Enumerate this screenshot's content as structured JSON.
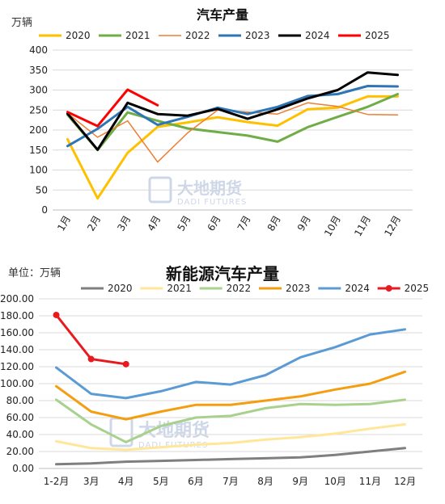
{
  "chart_data": [
    {
      "type": "line",
      "title": "汽车产量",
      "unit_label": "万辆",
      "categories": [
        "1月",
        "2月",
        "3月",
        "4月",
        "5月",
        "6月",
        "7月",
        "8月",
        "9月",
        "10月",
        "11月",
        "12月"
      ],
      "ylim": [
        0,
        400
      ],
      "yticks": [
        "0",
        "50",
        "100",
        "150",
        "200",
        "250",
        "300",
        "350",
        "400"
      ],
      "grid": true,
      "legend_position": "top",
      "series": [
        {
          "name": "2020",
          "color": "#FFC000",
          "width": 3,
          "marker": false,
          "values": [
            177,
            29,
            143,
            208,
            219,
            232,
            220,
            211,
            252,
            256,
            284,
            284
          ]
        },
        {
          "name": "2021",
          "color": "#70AD47",
          "width": 3,
          "marker": false,
          "values": [
            238,
            150,
            244,
            223,
            204,
            195,
            186,
            171,
            207,
            233,
            258,
            290
          ]
        },
        {
          "name": "2022",
          "color": "#ED7D31",
          "width": 1.5,
          "marker": false,
          "values": [
            242,
            182,
            223,
            120,
            193,
            250,
            245,
            240,
            268,
            259,
            239,
            238
          ]
        },
        {
          "name": "2023",
          "color": "#2E75B6",
          "width": 3,
          "marker": false,
          "values": [
            160,
            203,
            258,
            213,
            233,
            256,
            240,
            258,
            285,
            290,
            310,
            309
          ]
        },
        {
          "name": "2024",
          "color": "#000000",
          "width": 3,
          "marker": false,
          "values": [
            241,
            151,
            268,
            240,
            236,
            253,
            228,
            252,
            279,
            300,
            344,
            338
          ]
        },
        {
          "name": "2025",
          "color": "#FF0000",
          "width": 3,
          "marker": false,
          "values": [
            245,
            210,
            301,
            262,
            null,
            null,
            null,
            null,
            null,
            null,
            null,
            null
          ]
        }
      ]
    },
    {
      "type": "line",
      "title": "新能源汽车产量",
      "unit_label": "单位：万辆",
      "categories": [
        "1-2月",
        "3月",
        "4月",
        "5月",
        "6月",
        "7月",
        "8月",
        "9月",
        "10月",
        "11月",
        "12月"
      ],
      "ylim": [
        0,
        200
      ],
      "yticks": [
        "0.00",
        "20.00",
        "40.00",
        "60.00",
        "80.00",
        "100.00",
        "120.00",
        "140.00",
        "160.00",
        "180.00",
        "200.00"
      ],
      "grid": true,
      "legend_position": "top",
      "series": [
        {
          "name": "2020",
          "color": "#7F7F7F",
          "width": 3,
          "marker": false,
          "values": [
            5,
            6,
            8,
            9,
            10,
            11,
            12,
            13,
            16,
            20,
            24
          ]
        },
        {
          "name": "2021",
          "color": "#FFE699",
          "width": 3,
          "marker": false,
          "values": [
            32,
            24,
            22,
            25,
            28,
            30,
            34,
            37,
            41,
            47,
            52
          ]
        },
        {
          "name": "2022",
          "color": "#A9D18E",
          "width": 3,
          "marker": false,
          "values": [
            81,
            52,
            31,
            50,
            60,
            62,
            71,
            76,
            75,
            76,
            81
          ]
        },
        {
          "name": "2023",
          "color": "#F59D10",
          "width": 3,
          "marker": false,
          "values": [
            97,
            67,
            58,
            67,
            75,
            75,
            80,
            85,
            93,
            100,
            114
          ]
        },
        {
          "name": "2024",
          "color": "#5B9BD5",
          "width": 3,
          "marker": false,
          "values": [
            119,
            88,
            83,
            91,
            102,
            99,
            110,
            131,
            143,
            158,
            164
          ]
        },
        {
          "name": "2025",
          "color": "#E8191F",
          "width": 3,
          "marker": true,
          "values": [
            181,
            129,
            123,
            null,
            null,
            null,
            null,
            null,
            null,
            null,
            null
          ]
        }
      ]
    }
  ],
  "watermark": {
    "name": "大地期货",
    "sub": "DADI FUTURES"
  }
}
